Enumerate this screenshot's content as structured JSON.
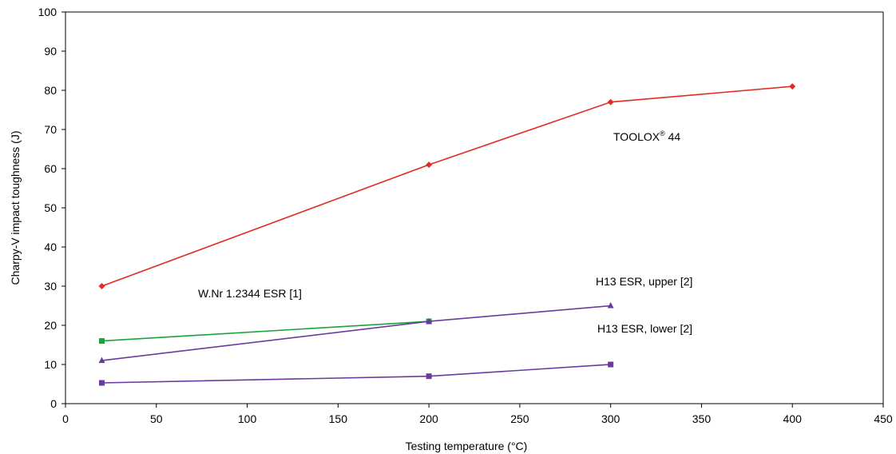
{
  "chart_data": {
    "type": "line",
    "xlabel": "Testing temperature (°C)",
    "ylabel": "Charpy-V impact toughness (J)",
    "xlim": [
      0,
      450
    ],
    "ylim": [
      0,
      100
    ],
    "x_ticks": [
      0,
      50,
      100,
      150,
      200,
      250,
      300,
      350,
      400,
      450
    ],
    "y_ticks": [
      0,
      10,
      20,
      30,
      40,
      50,
      60,
      70,
      80,
      90,
      100
    ],
    "grid": false,
    "legend": "none",
    "series": [
      {
        "key": "toolox",
        "color": "#e32b25",
        "marker": "diamond",
        "x": [
          20,
          200,
          300,
          400
        ],
        "y": [
          30,
          61,
          77,
          81
        ]
      },
      {
        "key": "wnr",
        "color": "#1aa33a",
        "marker": "square",
        "x": [
          20,
          200
        ],
        "y": [
          16,
          21
        ]
      },
      {
        "key": "h13_upper",
        "color": "#6a3b9c",
        "marker": "triangle",
        "x": [
          20,
          200,
          300
        ],
        "y": [
          11,
          21,
          25
        ]
      },
      {
        "key": "h13_lower",
        "color": "#6a3b9c",
        "marker": "square",
        "x": [
          20,
          200,
          300
        ],
        "y": [
          5.3,
          7,
          10
        ]
      }
    ],
    "annotations": {
      "toolox_main": "TOOLOX",
      "toolox_reg": "®",
      "toolox_suffix": " 44",
      "wnr": "W.Nr 1.2344 ESR [1]",
      "h13_upper": "H13 ESR, upper [2]",
      "h13_lower": "H13 ESR, lower [2]"
    }
  }
}
